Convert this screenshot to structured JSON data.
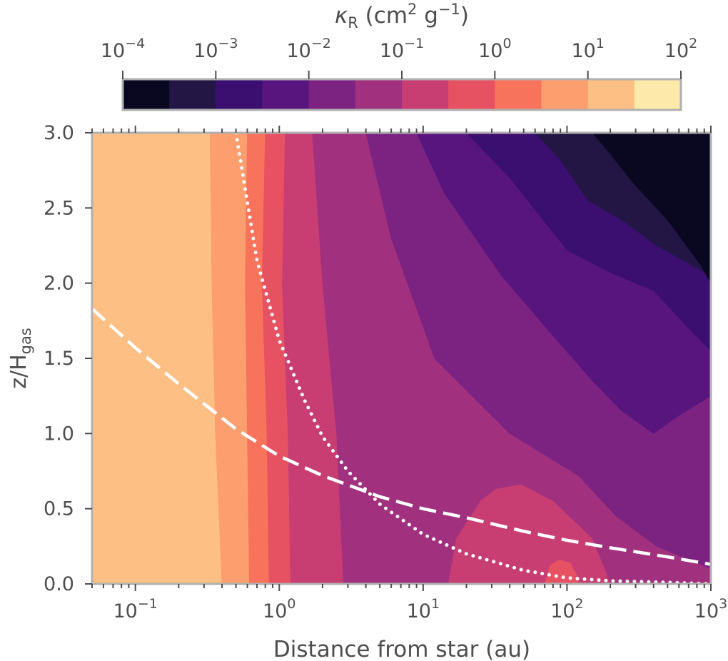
{
  "chart_data": {
    "type": "filled-contour",
    "title": "",
    "xlabel": "Distance from star (au)",
    "ylabel_main": "z/H",
    "ylabel_sub": "gas",
    "xscale": "log",
    "xlim": [
      0.05,
      1000
    ],
    "ylim": [
      0.0,
      3.0
    ],
    "x_ticks": [
      {
        "base": "10",
        "exp": "−1",
        "value": 0.1
      },
      {
        "base": "10",
        "exp": "0",
        "value": 1
      },
      {
        "base": "10",
        "exp": "1",
        "value": 10
      },
      {
        "base": "10",
        "exp": "2",
        "value": 100
      },
      {
        "base": "10",
        "exp": "3",
        "value": 1000
      }
    ],
    "y_ticks": [
      {
        "label": "0.0",
        "value": 0.0
      },
      {
        "label": "0.5",
        "value": 0.5
      },
      {
        "label": "1.0",
        "value": 1.0
      },
      {
        "label": "1.5",
        "value": 1.5
      },
      {
        "label": "2.0",
        "value": 2.0
      },
      {
        "label": "2.5",
        "value": 2.5
      },
      {
        "label": "3.0",
        "value": 3.0
      }
    ],
    "colorbar": {
      "label_main": "κ",
      "label_sub": "R",
      "label_units": " (cm",
      "label_exp1": "2",
      "label_mid": " g",
      "label_exp2": "−1",
      "label_end": ")",
      "scale": "log",
      "range": [
        0.0001,
        100
      ],
      "ticks": [
        {
          "base": "10",
          "exp": "−4",
          "value": 0.0001
        },
        {
          "base": "10",
          "exp": "−3",
          "value": 0.001
        },
        {
          "base": "10",
          "exp": "−2",
          "value": 0.01
        },
        {
          "base": "10",
          "exp": "−1",
          "value": 0.1
        },
        {
          "base": "10",
          "exp": "0",
          "value": 1
        },
        {
          "base": "10",
          "exp": "1",
          "value": 10
        },
        {
          "base": "10",
          "exp": "2",
          "value": 100
        }
      ],
      "levels_log10": [
        -4.0,
        -3.5,
        -3.0,
        -2.5,
        -2.0,
        -1.5,
        -1.0,
        -0.5,
        0.0,
        0.5,
        1.0,
        1.5,
        2.0
      ],
      "colors": [
        "#0a0821",
        "#231645",
        "#3b0f70",
        "#59157e",
        "#7c2382",
        "#a1307e",
        "#c83e73",
        "#e75263",
        "#f7735c",
        "#fc9e6e",
        "#febf84",
        "#fde9aa"
      ]
    },
    "regions": [
      {
        "name": "kappa-band-outer-1",
        "color": "#febf84",
        "boundary": [
          [
            0.05,
            0
          ],
          [
            0.4,
            0
          ],
          [
            0.36,
            1.0
          ],
          [
            0.34,
            2.0
          ],
          [
            0.33,
            3.0
          ],
          [
            0.05,
            3.0
          ]
        ]
      },
      {
        "name": "kappa-band-outer-2",
        "color": "#fc9e6e",
        "boundary": [
          [
            0.4,
            0
          ],
          [
            0.62,
            0
          ],
          [
            0.6,
            1.0
          ],
          [
            0.58,
            2.0
          ],
          [
            0.6,
            3.0
          ],
          [
            0.33,
            3.0
          ],
          [
            0.34,
            2.0
          ],
          [
            0.36,
            1.0
          ]
        ]
      },
      {
        "name": "kappa-band-outer-3",
        "color": "#f7735c",
        "boundary": [
          [
            0.62,
            0
          ],
          [
            0.85,
            0
          ],
          [
            0.82,
            1.0
          ],
          [
            0.76,
            2.0
          ],
          [
            0.8,
            3.0
          ],
          [
            0.6,
            3.0
          ],
          [
            0.58,
            2.0
          ],
          [
            0.6,
            1.0
          ]
        ]
      },
      {
        "name": "kappa-band-outer-4",
        "color": "#e75263",
        "boundary": [
          [
            0.85,
            0
          ],
          [
            1.2,
            0
          ],
          [
            1.15,
            1.0
          ],
          [
            1.05,
            2.0
          ],
          [
            1.1,
            3.0
          ],
          [
            0.8,
            3.0
          ],
          [
            0.76,
            2.0
          ],
          [
            0.82,
            1.0
          ]
        ]
      },
      {
        "name": "kappa-band-outer-5",
        "color": "#c83e73",
        "boundary": [
          [
            1.2,
            0
          ],
          [
            2.8,
            0
          ],
          [
            2.5,
            1.0
          ],
          [
            2.0,
            2.0
          ],
          [
            1.7,
            3.0
          ],
          [
            1.1,
            3.0
          ],
          [
            1.05,
            2.0
          ],
          [
            1.15,
            1.0
          ]
        ]
      },
      {
        "name": "kappa-band-outer-6",
        "color": "#a1307e",
        "boundary": [
          [
            2.8,
            0
          ],
          [
            1000,
            0
          ],
          [
            1000,
            3.0
          ],
          [
            1.7,
            3.0
          ],
          [
            2.0,
            2.0
          ],
          [
            2.5,
            1.0
          ]
        ]
      },
      {
        "name": "kappa-band-mid-1",
        "color": "#7c2382",
        "boundary": [
          [
            4,
            3.0
          ],
          [
            6,
            2.3
          ],
          [
            12,
            1.5
          ],
          [
            40,
            1.0
          ],
          [
            120,
            0.72
          ],
          [
            220,
            0.45
          ],
          [
            420,
            0.25
          ],
          [
            1000,
            0.1
          ],
          [
            1000,
            3.0
          ]
        ]
      },
      {
        "name": "kappa-band-mid-2",
        "color": "#59157e",
        "boundary": [
          [
            9,
            3.0
          ],
          [
            14,
            2.6
          ],
          [
            35,
            2.05
          ],
          [
            80,
            1.65
          ],
          [
            150,
            1.35
          ],
          [
            240,
            1.15
          ],
          [
            400,
            1.0
          ],
          [
            600,
            1.12
          ],
          [
            1000,
            1.25
          ],
          [
            1000,
            3.0
          ]
        ]
      },
      {
        "name": "kappa-band-mid-3",
        "color": "#3b0f70",
        "boundary": [
          [
            20,
            3.0
          ],
          [
            40,
            2.7
          ],
          [
            100,
            2.22
          ],
          [
            200,
            2.07
          ],
          [
            400,
            1.95
          ],
          [
            700,
            1.7
          ],
          [
            1000,
            1.55
          ],
          [
            1000,
            3.0
          ]
        ]
      },
      {
        "name": "kappa-band-inner-1",
        "color": "#231645",
        "boundary": [
          [
            60,
            3.0
          ],
          [
            90,
            2.82
          ],
          [
            140,
            2.55
          ],
          [
            240,
            2.42
          ],
          [
            420,
            2.25
          ],
          [
            800,
            2.1
          ],
          [
            1000,
            2.05
          ],
          [
            1000,
            3.0
          ]
        ]
      },
      {
        "name": "kappa-band-inner-2",
        "color": "#0a0821",
        "boundary": [
          [
            150,
            3.0
          ],
          [
            200,
            2.86
          ],
          [
            280,
            2.68
          ],
          [
            500,
            2.42
          ],
          [
            850,
            2.12
          ],
          [
            1000,
            2.0
          ],
          [
            1000,
            3.0
          ]
        ]
      },
      {
        "name": "kappa-bump-band-1",
        "color": "#c83e73",
        "boundary": [
          [
            15,
            0
          ],
          [
            17,
            0.3
          ],
          [
            25,
            0.55
          ],
          [
            32,
            0.63
          ],
          [
            48,
            0.66
          ],
          [
            80,
            0.55
          ],
          [
            150,
            0.3
          ],
          [
            200,
            0
          ]
        ]
      },
      {
        "name": "kappa-bump-band-2",
        "color": "#e75263",
        "boundary": [
          [
            70,
            0
          ],
          [
            76,
            0.12
          ],
          [
            88,
            0.16
          ],
          [
            105,
            0.14
          ],
          [
            118,
            0.05
          ],
          [
            120,
            0
          ]
        ]
      }
    ],
    "series": [
      {
        "name": "dashed-curve",
        "style": "dashed",
        "x": [
          0.05,
          0.1,
          0.2,
          0.5,
          1,
          2,
          5,
          10,
          20,
          50,
          100,
          200,
          500,
          1000
        ],
        "y": [
          1.83,
          1.57,
          1.33,
          1.03,
          0.85,
          0.72,
          0.58,
          0.5,
          0.44,
          0.35,
          0.29,
          0.24,
          0.18,
          0.13
        ]
      },
      {
        "name": "dotted-curve",
        "style": "dotted",
        "x": [
          0.5,
          0.7,
          1,
          1.5,
          2,
          3,
          5,
          10,
          20,
          50,
          100,
          200,
          500,
          1000
        ],
        "y": [
          3.0,
          2.15,
          1.62,
          1.22,
          0.98,
          0.75,
          0.53,
          0.33,
          0.2,
          0.09,
          0.04,
          0.02,
          0.01,
          0.0
        ]
      }
    ]
  }
}
